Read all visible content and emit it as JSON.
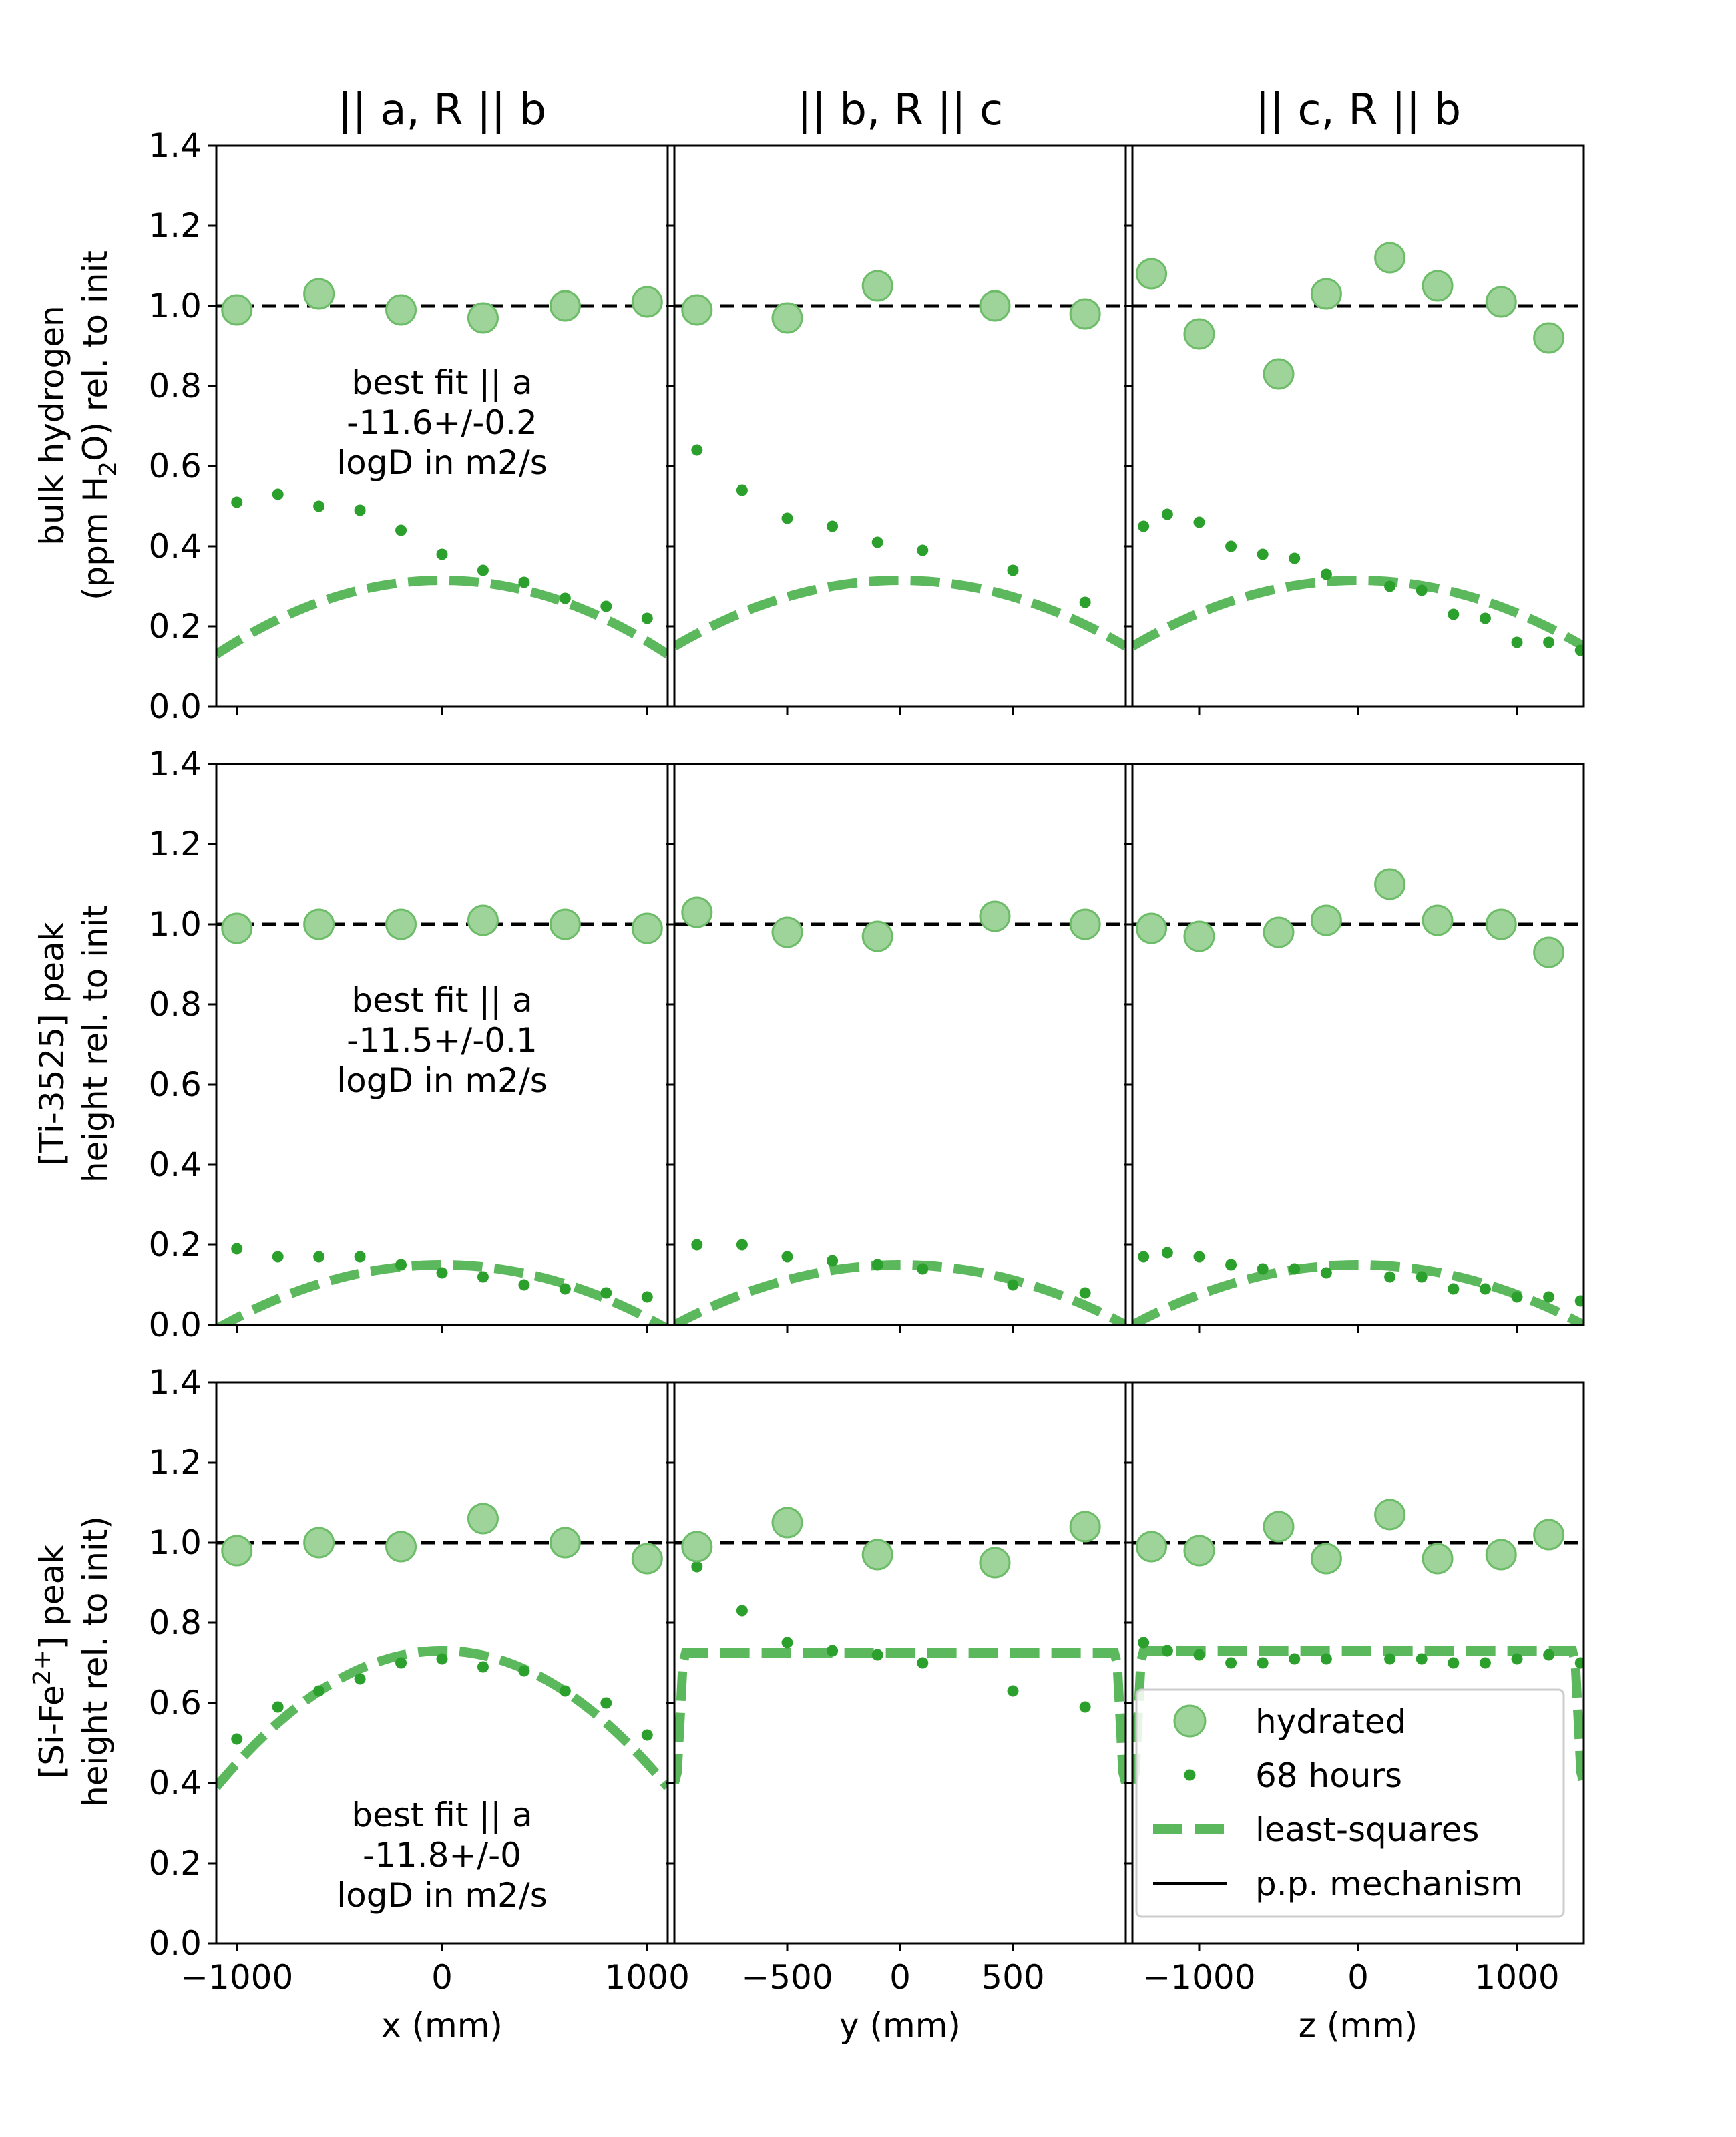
{
  "colors": {
    "green": "#2ca02c",
    "fit_green": "#5cb85c",
    "hydrated_fill": "#9ed39a",
    "hydrated_edge": "#6cbc68",
    "black": "#000000"
  },
  "column_titles": [
    "|| a, R || b",
    "|| b, R || c",
    "|| c, R || b"
  ],
  "row_labels": [
    {
      "line1": "bulk hydrogen",
      "line2_pre": "(ppm H",
      "line2_sub": "2",
      "line2_post": "O) rel. to init"
    },
    {
      "line1": "[Ti-3525] peak",
      "line2_pre": "height rel. to init",
      "line2_sub": "",
      "line2_post": ""
    },
    {
      "line1_pre": "[Si-Fe",
      "line1_sup": "2+",
      "line1_post": "] peak",
      "line2_pre": "height rel. to init)",
      "line2_sub": "",
      "line2_post": ""
    }
  ],
  "x_labels": [
    "x (mm)",
    "y (mm)",
    "z (mm)"
  ],
  "annotations": [
    [
      "best fit || a",
      "-11.6+/-0.2",
      "logD in m2/s"
    ],
    [
      "best fit || a",
      "-11.5+/-0.1",
      "logD in m2/s"
    ],
    [
      "best fit || a",
      "-11.8+/-0",
      "logD in m2/s"
    ]
  ],
  "legend": {
    "placement": "lower-right of bottom-right panel",
    "entries": [
      "hydrated",
      "68 hours",
      "least-squares",
      "p.p. mechanism"
    ]
  },
  "chart_data": {
    "type": "scatter",
    "layout": "3x3 grid of panels sharing y-axis per row and x-axis per column",
    "ylim": [
      0,
      1.4
    ],
    "yticks": [
      0.0,
      0.2,
      0.4,
      0.6,
      0.8,
      1.0,
      1.2,
      1.4
    ],
    "ytick_labels": [
      "0.0",
      "0.2",
      "0.4",
      "0.6",
      "0.8",
      "1.0",
      "1.2",
      "1.4"
    ],
    "columns": [
      {
        "xlim": [
          -1100,
          1100
        ],
        "xticks": [
          -1000,
          0,
          1000
        ],
        "xtick_labels": [
          "−1000",
          "0",
          "1000"
        ]
      },
      {
        "xlim": [
          -1000,
          1000
        ],
        "xticks": [
          -500,
          0,
          500
        ],
        "xtick_labels": [
          "−500",
          "0",
          "500"
        ]
      },
      {
        "xlim": [
          -1420,
          1420
        ],
        "xticks": [
          -1000,
          0,
          1000
        ],
        "xtick_labels": [
          "−1000",
          "0",
          "1000"
        ]
      }
    ],
    "reference_line": {
      "name": "p.p. mechanism",
      "y": 1.0
    },
    "panels": [
      [
        {
          "hydrated": [
            [
              -1000,
              0.99
            ],
            [
              -600,
              1.03
            ],
            [
              -200,
              0.99
            ],
            [
              200,
              0.97
            ],
            [
              600,
              1.0
            ],
            [
              1000,
              1.01
            ]
          ],
          "h68": [
            [
              -1000,
              0.51
            ],
            [
              -800,
              0.53
            ],
            [
              -600,
              0.5
            ],
            [
              -400,
              0.49
            ],
            [
              -200,
              0.44
            ],
            [
              0,
              0.38
            ],
            [
              200,
              0.34
            ],
            [
              400,
              0.31
            ],
            [
              600,
              0.27
            ],
            [
              800,
              0.25
            ],
            [
              1000,
              0.22
            ]
          ],
          "fit": {
            "kind": "dome",
            "peak": 0.315,
            "edge": 0.13
          }
        },
        {
          "hydrated": [
            [
              -900,
              0.99
            ],
            [
              -500,
              0.97
            ],
            [
              -100,
              1.05
            ],
            [
              420,
              1.0
            ],
            [
              820,
              0.98
            ]
          ],
          "h68": [
            [
              -900,
              0.64
            ],
            [
              -700,
              0.54
            ],
            [
              -500,
              0.47
            ],
            [
              -300,
              0.45
            ],
            [
              -100,
              0.41
            ],
            [
              100,
              0.39
            ],
            [
              500,
              0.34
            ],
            [
              820,
              0.26
            ]
          ],
          "fit": {
            "kind": "dome",
            "peak": 0.315,
            "edge": 0.15
          }
        },
        {
          "hydrated": [
            [
              -1300,
              1.08
            ],
            [
              -1000,
              0.93
            ],
            [
              -500,
              0.83
            ],
            [
              -200,
              1.03
            ],
            [
              200,
              1.12
            ],
            [
              500,
              1.05
            ],
            [
              900,
              1.01
            ],
            [
              1200,
              0.92
            ]
          ],
          "h68": [
            [
              -1350,
              0.45
            ],
            [
              -1200,
              0.48
            ],
            [
              -1000,
              0.46
            ],
            [
              -800,
              0.4
            ],
            [
              -600,
              0.38
            ],
            [
              -400,
              0.37
            ],
            [
              -200,
              0.33
            ],
            [
              200,
              0.3
            ],
            [
              400,
              0.29
            ],
            [
              600,
              0.23
            ],
            [
              800,
              0.22
            ],
            [
              1000,
              0.16
            ],
            [
              1200,
              0.16
            ],
            [
              1400,
              0.14
            ]
          ],
          "fit": {
            "kind": "dome",
            "peak": 0.315,
            "edge": 0.15
          }
        }
      ],
      [
        {
          "hydrated": [
            [
              -1000,
              0.99
            ],
            [
              -600,
              1.0
            ],
            [
              -200,
              1.0
            ],
            [
              200,
              1.01
            ],
            [
              600,
              1.0
            ],
            [
              1000,
              0.99
            ]
          ],
          "h68": [
            [
              -1000,
              0.19
            ],
            [
              -800,
              0.17
            ],
            [
              -600,
              0.17
            ],
            [
              -400,
              0.17
            ],
            [
              -200,
              0.15
            ],
            [
              0,
              0.13
            ],
            [
              200,
              0.12
            ],
            [
              400,
              0.1
            ],
            [
              600,
              0.09
            ],
            [
              800,
              0.08
            ],
            [
              1000,
              0.07
            ]
          ],
          "fit": {
            "kind": "dome",
            "peak": 0.15,
            "edge": -0.01
          }
        },
        {
          "hydrated": [
            [
              -900,
              1.03
            ],
            [
              -500,
              0.98
            ],
            [
              -100,
              0.97
            ],
            [
              420,
              1.02
            ],
            [
              820,
              1.0
            ]
          ],
          "h68": [
            [
              -900,
              0.2
            ],
            [
              -700,
              0.2
            ],
            [
              -500,
              0.17
            ],
            [
              -300,
              0.16
            ],
            [
              -100,
              0.15
            ],
            [
              100,
              0.14
            ],
            [
              500,
              0.1
            ],
            [
              820,
              0.08
            ]
          ],
          "fit": {
            "kind": "dome",
            "peak": 0.15,
            "edge": 0.0
          }
        },
        {
          "hydrated": [
            [
              -1300,
              0.99
            ],
            [
              -1000,
              0.97
            ],
            [
              -500,
              0.98
            ],
            [
              -200,
              1.01
            ],
            [
              200,
              1.1
            ],
            [
              500,
              1.01
            ],
            [
              900,
              1.0
            ],
            [
              1200,
              0.93
            ]
          ],
          "h68": [
            [
              -1350,
              0.17
            ],
            [
              -1200,
              0.18
            ],
            [
              -1000,
              0.17
            ],
            [
              -800,
              0.15
            ],
            [
              -600,
              0.14
            ],
            [
              -400,
              0.14
            ],
            [
              -200,
              0.13
            ],
            [
              200,
              0.12
            ],
            [
              400,
              0.12
            ],
            [
              600,
              0.09
            ],
            [
              800,
              0.09
            ],
            [
              1000,
              0.07
            ],
            [
              1200,
              0.07
            ],
            [
              1400,
              0.06
            ]
          ],
          "fit": {
            "kind": "dome",
            "peak": 0.15,
            "edge": 0.0
          }
        }
      ],
      [
        {
          "hydrated": [
            [
              -1000,
              0.98
            ],
            [
              -600,
              1.0
            ],
            [
              -200,
              0.99
            ],
            [
              200,
              1.06
            ],
            [
              600,
              1.0
            ],
            [
              1000,
              0.96
            ]
          ],
          "h68": [
            [
              -1000,
              0.51
            ],
            [
              -800,
              0.59
            ],
            [
              -600,
              0.63
            ],
            [
              -400,
              0.66
            ],
            [
              -200,
              0.7
            ],
            [
              0,
              0.71
            ],
            [
              200,
              0.69
            ],
            [
              400,
              0.68
            ],
            [
              600,
              0.63
            ],
            [
              800,
              0.6
            ],
            [
              1000,
              0.52
            ]
          ],
          "fit": {
            "kind": "dome",
            "peak": 0.73,
            "edge": 0.39
          }
        },
        {
          "hydrated": [
            [
              -900,
              0.99
            ],
            [
              -500,
              1.05
            ],
            [
              -100,
              0.97
            ],
            [
              420,
              0.95
            ],
            [
              820,
              1.04
            ]
          ],
          "h68": [
            [
              -900,
              0.94
            ],
            [
              -700,
              0.83
            ],
            [
              -500,
              0.75
            ],
            [
              -300,
              0.73
            ],
            [
              -100,
              0.72
            ],
            [
              100,
              0.7
            ],
            [
              500,
              0.63
            ],
            [
              820,
              0.59
            ]
          ],
          "fit": {
            "kind": "plateau",
            "plateau": 0.725,
            "edge": 0.4
          }
        },
        {
          "hydrated": [
            [
              -1300,
              0.99
            ],
            [
              -1000,
              0.98
            ],
            [
              -500,
              1.04
            ],
            [
              -200,
              0.96
            ],
            [
              200,
              1.07
            ],
            [
              500,
              0.96
            ],
            [
              900,
              0.97
            ],
            [
              1200,
              1.02
            ]
          ],
          "h68": [
            [
              -1350,
              0.75
            ],
            [
              -1200,
              0.73
            ],
            [
              -1000,
              0.72
            ],
            [
              -800,
              0.7
            ],
            [
              -600,
              0.7
            ],
            [
              -400,
              0.71
            ],
            [
              -200,
              0.71
            ],
            [
              200,
              0.71
            ],
            [
              400,
              0.71
            ],
            [
              600,
              0.7
            ],
            [
              800,
              0.7
            ],
            [
              1000,
              0.71
            ],
            [
              1200,
              0.72
            ],
            [
              1400,
              0.7
            ]
          ],
          "fit": {
            "kind": "plateau",
            "plateau": 0.73,
            "edge": 0.4
          }
        }
      ]
    ]
  }
}
